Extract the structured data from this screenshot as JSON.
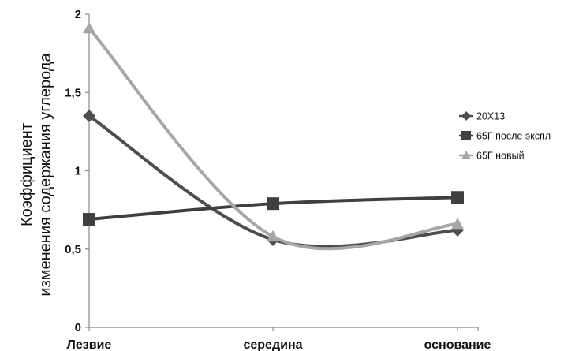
{
  "chart_data": {
    "type": "line",
    "title": "",
    "xlabel": "",
    "ylabel": [
      "Коэффициент",
      "изменения содержания углерода"
    ],
    "categories": [
      "Лезвие",
      "середина",
      "основание"
    ],
    "y_ticks": [
      "0",
      "0,5",
      "1",
      "1,5",
      "2"
    ],
    "ylim": [
      0,
      2
    ],
    "grid": false,
    "legend_position": "right",
    "smooth": true,
    "series": [
      {
        "name": "20Х13",
        "values": [
          1.35,
          0.56,
          0.62
        ],
        "color": "#4d4d4d",
        "marker": "diamond"
      },
      {
        "name": "65Г после экспл",
        "values": [
          0.69,
          0.79,
          0.83
        ],
        "color": "#3f3f3f",
        "marker": "square"
      },
      {
        "name": "65Г новый",
        "values": [
          1.91,
          0.58,
          0.66
        ],
        "color": "#a6a6a6",
        "marker": "triangle"
      }
    ]
  }
}
